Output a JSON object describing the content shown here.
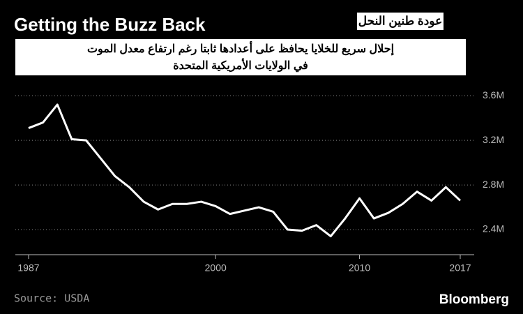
{
  "chart_data": {
    "type": "line",
    "title": "Getting the Buzz Back",
    "annotations": [
      "عودة طنين النحل",
      "إحلال سريع للخلايا يحافظ على أعدادها ثابتا رغم ارتفاع معدل الموت",
      "في الولايات الأمريكية المتحدة"
    ],
    "source": "Source: USDA",
    "brand": "Bloomberg",
    "x": [
      1987,
      1988,
      1989,
      1990,
      1991,
      1992,
      1993,
      1994,
      1995,
      1996,
      1997,
      1998,
      1999,
      2000,
      2001,
      2002,
      2003,
      2004,
      2005,
      2006,
      2007,
      2008,
      2009,
      2010,
      2011,
      2012,
      2013,
      2014,
      2015,
      2016,
      2017
    ],
    "series": [
      {
        "color": "#ffffff",
        "values": [
          3.31,
          3.36,
          3.52,
          3.21,
          3.2,
          3.04,
          2.88,
          2.78,
          2.65,
          2.58,
          2.63,
          2.63,
          2.65,
          2.61,
          2.54,
          2.57,
          2.6,
          2.56,
          2.4,
          2.39,
          2.44,
          2.34,
          2.5,
          2.68,
          2.5,
          2.55,
          2.63,
          2.74,
          2.66,
          2.78,
          2.66
        ]
      }
    ],
    "xlim": [
      1986.08,
      2017.97
    ],
    "xticks": [
      1987,
      2000,
      2010,
      2017
    ],
    "ylim": [
      2.175,
      3.77
    ],
    "yticks": [
      {
        "value": 2.4,
        "label": "2.4M"
      },
      {
        "value": 2.8,
        "label": "2.8M"
      },
      {
        "value": 3.2,
        "label": "3.2M"
      },
      {
        "value": 3.6,
        "label": "3.6M"
      }
    ],
    "grid": true
  }
}
